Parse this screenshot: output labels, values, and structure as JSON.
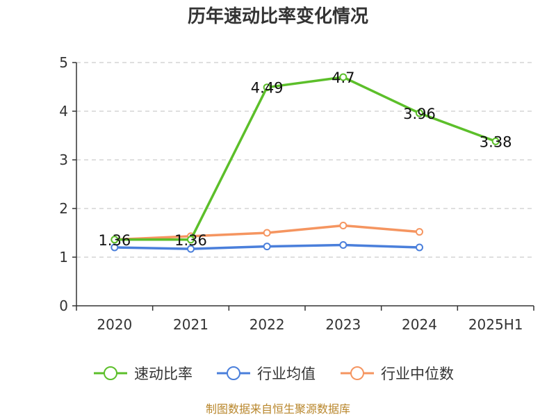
{
  "chart_data": {
    "type": "line",
    "title": "历年速动比率变化情况",
    "source": "制图数据来自恒生聚源数据库",
    "categories": [
      "2020",
      "2021",
      "2022",
      "2023",
      "2024",
      "2025H1"
    ],
    "ylim": [
      0,
      5
    ],
    "yticks": [
      "0",
      "1",
      "2",
      "3",
      "4",
      "5"
    ],
    "grid": true,
    "legend_position": "bottom",
    "series": [
      {
        "name": "速动比率",
        "color": "#5cbf2a",
        "values": [
          1.36,
          1.36,
          4.49,
          4.7,
          3.96,
          3.38
        ],
        "labels": [
          "1.36",
          "1.36",
          "4.49",
          "4.7",
          "3.96",
          "3.38"
        ]
      },
      {
        "name": "行业均值",
        "color": "#4a7fdb",
        "values": [
          1.2,
          1.17,
          1.22,
          1.25,
          1.2,
          null
        ]
      },
      {
        "name": "行业中位数",
        "color": "#f59560",
        "values": [
          1.36,
          1.43,
          1.5,
          1.65,
          1.52,
          null
        ]
      }
    ]
  }
}
